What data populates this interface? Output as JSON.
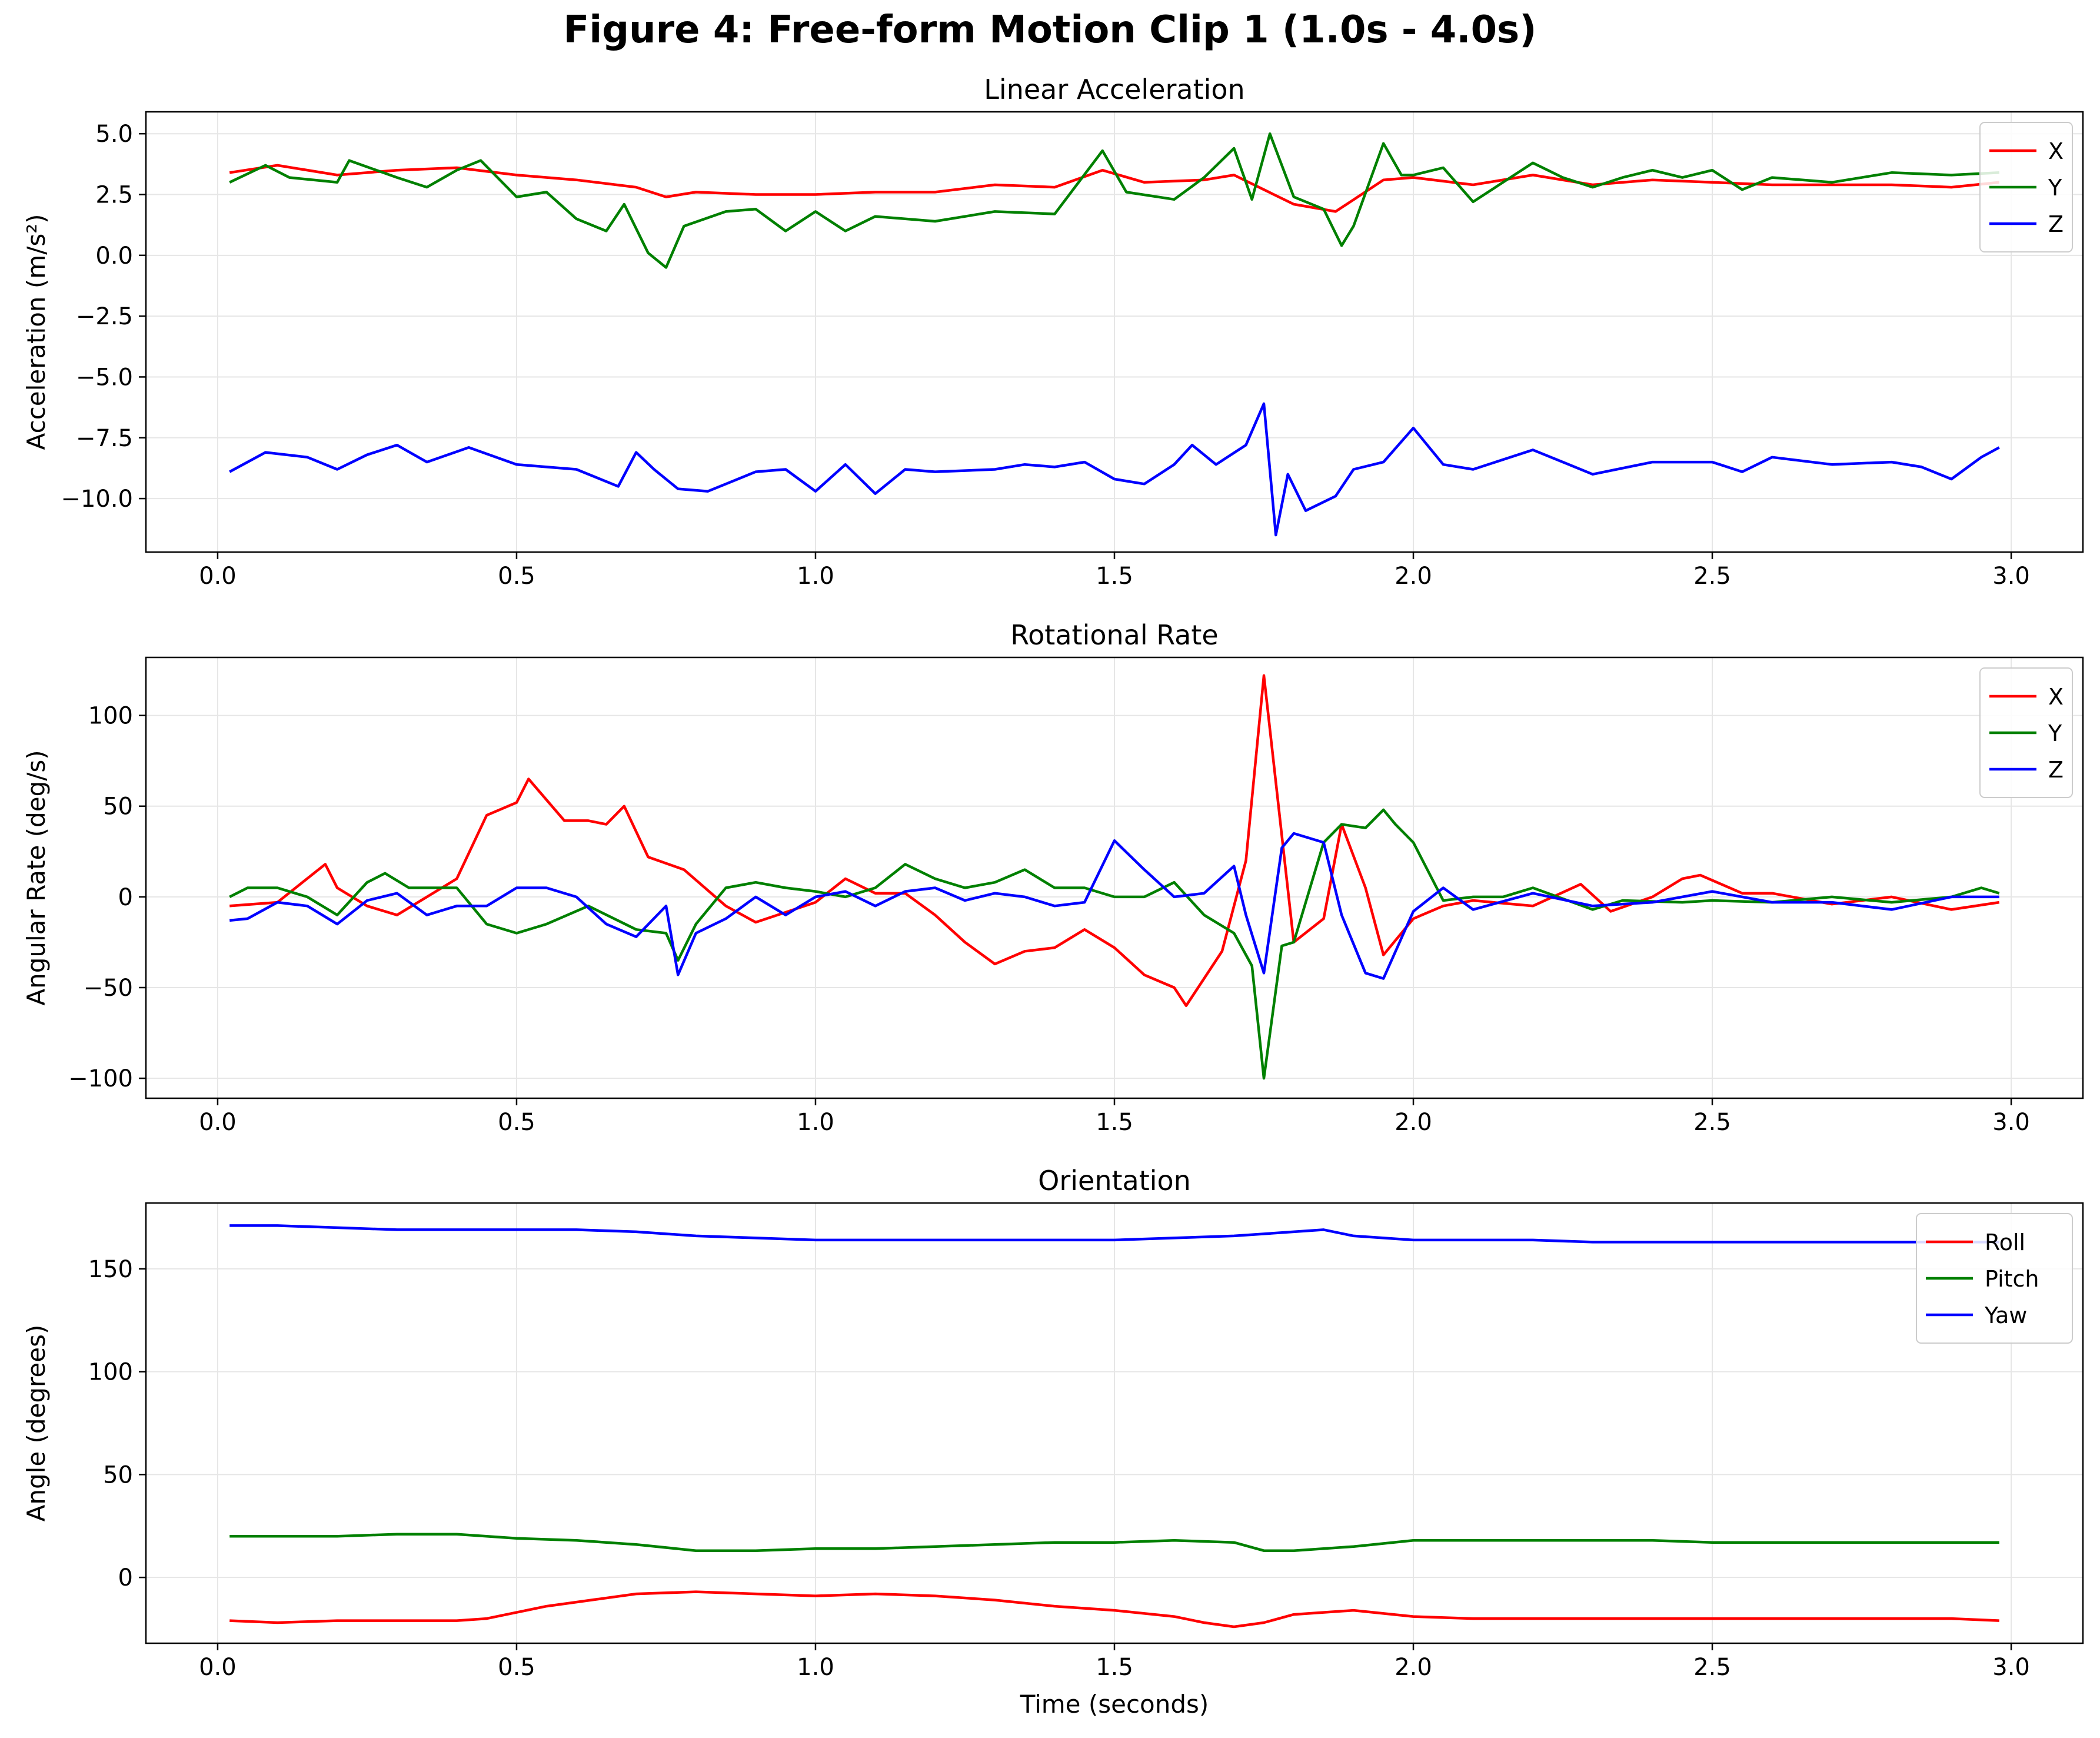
{
  "figure_title": "Figure 4: Free-form Motion Clip 1 (1.0s - 4.0s)",
  "chart_data": [
    {
      "type": "line",
      "title": "Linear Acceleration",
      "xlabel": "",
      "ylabel": "Acceleration (m/s²)",
      "xlim": [
        -0.12,
        3.12
      ],
      "ylim": [
        -12.2,
        5.9
      ],
      "xticks": [
        0.0,
        0.5,
        1.0,
        1.5,
        2.0,
        2.5,
        3.0
      ],
      "xtick_labels": [
        "0.0",
        "0.5",
        "1.0",
        "1.5",
        "2.0",
        "2.5",
        "3.0"
      ],
      "yticks": [
        -10,
        -7.5,
        -5,
        -2.5,
        0,
        2.5,
        5
      ],
      "ytick_labels": [
        "−10.0",
        "−7.5",
        "−5.0",
        "−2.5",
        "0.0",
        "2.5",
        "5.0"
      ],
      "grid": true,
      "legend": "top-right",
      "series": [
        {
          "name": "X",
          "color": "#ff0000",
          "x": [
            0.02,
            0.1,
            0.2,
            0.3,
            0.4,
            0.5,
            0.6,
            0.7,
            0.75,
            0.8,
            0.9,
            1.0,
            1.1,
            1.2,
            1.3,
            1.4,
            1.48,
            1.55,
            1.65,
            1.7,
            1.75,
            1.8,
            1.87,
            1.95,
            2.0,
            2.1,
            2.2,
            2.3,
            2.4,
            2.5,
            2.6,
            2.7,
            2.8,
            2.9,
            2.98
          ],
          "y": [
            3.4,
            3.7,
            3.3,
            3.5,
            3.6,
            3.3,
            3.1,
            2.8,
            2.4,
            2.6,
            2.5,
            2.5,
            2.6,
            2.6,
            2.9,
            2.8,
            3.5,
            3.0,
            3.1,
            3.3,
            2.7,
            2.1,
            1.8,
            3.1,
            3.2,
            2.9,
            3.3,
            2.9,
            3.1,
            3.0,
            2.9,
            2.9,
            2.9,
            2.8,
            3.0
          ]
        },
        {
          "name": "Y",
          "color": "#008000",
          "x": [
            0.02,
            0.08,
            0.12,
            0.2,
            0.22,
            0.3,
            0.35,
            0.4,
            0.44,
            0.5,
            0.55,
            0.6,
            0.65,
            0.68,
            0.72,
            0.75,
            0.78,
            0.85,
            0.9,
            0.95,
            1.0,
            1.05,
            1.1,
            1.2,
            1.3,
            1.4,
            1.48,
            1.52,
            1.6,
            1.65,
            1.7,
            1.73,
            1.76,
            1.8,
            1.85,
            1.88,
            1.9,
            1.95,
            1.98,
            2.0,
            2.05,
            2.1,
            2.15,
            2.2,
            2.25,
            2.3,
            2.35,
            2.4,
            2.45,
            2.5,
            2.55,
            2.6,
            2.7,
            2.8,
            2.9,
            2.98
          ],
          "y": [
            3.0,
            3.7,
            3.2,
            3.0,
            3.9,
            3.2,
            2.8,
            3.5,
            3.9,
            2.4,
            2.6,
            1.5,
            1.0,
            2.1,
            0.1,
            -0.5,
            1.2,
            1.8,
            1.9,
            1.0,
            1.8,
            1.0,
            1.6,
            1.4,
            1.8,
            1.7,
            4.3,
            2.6,
            2.3,
            3.2,
            4.4,
            2.3,
            5.0,
            2.4,
            1.9,
            0.4,
            1.2,
            4.6,
            3.3,
            3.3,
            3.6,
            2.2,
            3.0,
            3.8,
            3.2,
            2.8,
            3.2,
            3.5,
            3.2,
            3.5,
            2.7,
            3.2,
            3.0,
            3.4,
            3.3,
            3.4
          ]
        },
        {
          "name": "Z",
          "color": "#0000ff",
          "x": [
            0.02,
            0.08,
            0.15,
            0.2,
            0.25,
            0.3,
            0.35,
            0.42,
            0.5,
            0.6,
            0.67,
            0.7,
            0.73,
            0.77,
            0.82,
            0.85,
            0.9,
            0.95,
            1.0,
            1.05,
            1.1,
            1.15,
            1.2,
            1.3,
            1.35,
            1.4,
            1.45,
            1.5,
            1.55,
            1.6,
            1.63,
            1.67,
            1.72,
            1.75,
            1.77,
            1.79,
            1.82,
            1.87,
            1.9,
            1.95,
            2.0,
            2.05,
            2.1,
            2.2,
            2.3,
            2.4,
            2.5,
            2.55,
            2.6,
            2.7,
            2.8,
            2.85,
            2.9,
            2.95,
            2.98
          ],
          "y": [
            -8.9,
            -8.1,
            -8.3,
            -8.8,
            -8.2,
            -7.8,
            -8.5,
            -7.9,
            -8.6,
            -8.8,
            -9.5,
            -8.1,
            -8.8,
            -9.6,
            -9.7,
            -9.4,
            -8.9,
            -8.8,
            -9.7,
            -8.6,
            -9.8,
            -8.8,
            -8.9,
            -8.8,
            -8.6,
            -8.7,
            -8.5,
            -9.2,
            -9.4,
            -8.6,
            -7.8,
            -8.6,
            -7.8,
            -6.1,
            -11.5,
            -9.0,
            -10.5,
            -9.9,
            -8.8,
            -8.5,
            -7.1,
            -8.6,
            -8.8,
            -8.0,
            -9.0,
            -8.5,
            -8.5,
            -8.9,
            -8.3,
            -8.6,
            -8.5,
            -8.7,
            -9.2,
            -8.3,
            -7.9
          ]
        }
      ]
    },
    {
      "type": "line",
      "title": "Rotational Rate",
      "xlabel": "",
      "ylabel": "Angular Rate (deg/s)",
      "xlim": [
        -0.12,
        3.12
      ],
      "ylim": [
        -111,
        132
      ],
      "xticks": [
        0.0,
        0.5,
        1.0,
        1.5,
        2.0,
        2.5,
        3.0
      ],
      "xtick_labels": [
        "0.0",
        "0.5",
        "1.0",
        "1.5",
        "2.0",
        "2.5",
        "3.0"
      ],
      "yticks": [
        -100,
        -50,
        0,
        50,
        100
      ],
      "ytick_labels": [
        "−100",
        "−50",
        "0",
        "50",
        "100"
      ],
      "grid": true,
      "legend": "top-right",
      "series": [
        {
          "name": "X",
          "color": "#ff0000",
          "x": [
            0.02,
            0.1,
            0.18,
            0.2,
            0.25,
            0.3,
            0.35,
            0.4,
            0.45,
            0.5,
            0.52,
            0.58,
            0.62,
            0.65,
            0.68,
            0.72,
            0.78,
            0.85,
            0.9,
            1.0,
            1.05,
            1.1,
            1.15,
            1.2,
            1.25,
            1.3,
            1.35,
            1.4,
            1.45,
            1.5,
            1.55,
            1.6,
            1.62,
            1.68,
            1.72,
            1.75,
            1.8,
            1.85,
            1.88,
            1.92,
            1.95,
            2.0,
            2.05,
            2.1,
            2.2,
            2.28,
            2.33,
            2.4,
            2.45,
            2.48,
            2.55,
            2.6,
            2.7,
            2.8,
            2.9,
            2.98
          ],
          "y": [
            -5,
            -3,
            18,
            5,
            -5,
            -10,
            0,
            10,
            45,
            52,
            65,
            42,
            42,
            40,
            50,
            22,
            15,
            -5,
            -14,
            -3,
            10,
            2,
            2,
            -10,
            -25,
            -37,
            -30,
            -28,
            -18,
            -28,
            -43,
            -50,
            -60,
            -30,
            20,
            122,
            -25,
            -12,
            40,
            5,
            -32,
            -12,
            -5,
            -2,
            -5,
            7,
            -8,
            0,
            10,
            12,
            2,
            2,
            -4,
            0,
            -7,
            -3
          ]
        },
        {
          "name": "Y",
          "color": "#008000",
          "x": [
            0.02,
            0.05,
            0.1,
            0.15,
            0.2,
            0.25,
            0.28,
            0.32,
            0.37,
            0.4,
            0.45,
            0.5,
            0.55,
            0.62,
            0.7,
            0.75,
            0.77,
            0.8,
            0.85,
            0.9,
            0.95,
            1.0,
            1.05,
            1.1,
            1.15,
            1.2,
            1.25,
            1.3,
            1.35,
            1.4,
            1.45,
            1.5,
            1.55,
            1.6,
            1.65,
            1.7,
            1.73,
            1.75,
            1.78,
            1.8,
            1.85,
            1.88,
            1.92,
            1.95,
            1.97,
            2.0,
            2.05,
            2.1,
            2.15,
            2.2,
            2.3,
            2.35,
            2.45,
            2.5,
            2.6,
            2.7,
            2.8,
            2.9,
            2.95,
            2.98
          ],
          "y": [
            0,
            5,
            5,
            0,
            -10,
            8,
            13,
            5,
            5,
            5,
            -15,
            -20,
            -15,
            -5,
            -18,
            -20,
            -35,
            -15,
            5,
            8,
            5,
            3,
            0,
            5,
            18,
            10,
            5,
            8,
            15,
            5,
            5,
            0,
            0,
            8,
            -10,
            -20,
            -38,
            -100,
            -27,
            -25,
            30,
            40,
            38,
            48,
            40,
            30,
            -2,
            0,
            0,
            5,
            -7,
            -2,
            -3,
            -2,
            -3,
            0,
            -3,
            0,
            5,
            2
          ]
        },
        {
          "name": "Z",
          "color": "#0000ff",
          "x": [
            0.02,
            0.05,
            0.1,
            0.15,
            0.2,
            0.25,
            0.3,
            0.35,
            0.4,
            0.45,
            0.5,
            0.55,
            0.6,
            0.65,
            0.7,
            0.75,
            0.77,
            0.8,
            0.85,
            0.9,
            0.95,
            1.0,
            1.05,
            1.1,
            1.15,
            1.2,
            1.25,
            1.3,
            1.35,
            1.4,
            1.45,
            1.5,
            1.55,
            1.6,
            1.65,
            1.7,
            1.72,
            1.75,
            1.78,
            1.8,
            1.85,
            1.88,
            1.92,
            1.95,
            2.0,
            2.05,
            2.1,
            2.2,
            2.3,
            2.4,
            2.5,
            2.6,
            2.7,
            2.8,
            2.9,
            2.98
          ],
          "y": [
            -13,
            -12,
            -3,
            -5,
            -15,
            -2,
            2,
            -10,
            -5,
            -5,
            5,
            5,
            0,
            -15,
            -22,
            -5,
            -43,
            -20,
            -12,
            0,
            -10,
            0,
            3,
            -5,
            3,
            5,
            -2,
            2,
            0,
            -5,
            -3,
            31,
            15,
            0,
            2,
            17,
            -10,
            -42,
            27,
            35,
            30,
            -10,
            -42,
            -45,
            -8,
            5,
            -7,
            2,
            -5,
            -3,
            3,
            -3,
            -3,
            -7,
            0,
            0
          ]
        }
      ]
    },
    {
      "type": "line",
      "title": "Orientation",
      "xlabel": "Time (seconds)",
      "ylabel": "Angle (degrees)",
      "xlim": [
        -0.12,
        3.12
      ],
      "ylim": [
        -32,
        182
      ],
      "xticks": [
        0.0,
        0.5,
        1.0,
        1.5,
        2.0,
        2.5,
        3.0
      ],
      "xtick_labels": [
        "0.0",
        "0.5",
        "1.0",
        "1.5",
        "2.0",
        "2.5",
        "3.0"
      ],
      "yticks": [
        0,
        50,
        100,
        150
      ],
      "ytick_labels": [
        "0",
        "50",
        "100",
        "150"
      ],
      "grid": true,
      "legend": "top-right",
      "series": [
        {
          "name": "Roll",
          "color": "#ff0000",
          "x": [
            0.02,
            0.1,
            0.2,
            0.3,
            0.4,
            0.45,
            0.5,
            0.55,
            0.6,
            0.7,
            0.8,
            0.9,
            1.0,
            1.1,
            1.2,
            1.3,
            1.4,
            1.5,
            1.6,
            1.65,
            1.7,
            1.75,
            1.8,
            1.9,
            2.0,
            2.1,
            2.2,
            2.3,
            2.4,
            2.5,
            2.6,
            2.7,
            2.8,
            2.9,
            2.98
          ],
          "y": [
            -21,
            -22,
            -21,
            -21,
            -21,
            -20,
            -17,
            -14,
            -12,
            -8,
            -7,
            -8,
            -9,
            -8,
            -9,
            -11,
            -14,
            -16,
            -19,
            -22,
            -24,
            -22,
            -18,
            -16,
            -19,
            -20,
            -20,
            -20,
            -20,
            -20,
            -20,
            -20,
            -20,
            -20,
            -21
          ]
        },
        {
          "name": "Pitch",
          "color": "#008000",
          "x": [
            0.02,
            0.1,
            0.2,
            0.3,
            0.4,
            0.5,
            0.6,
            0.7,
            0.8,
            0.9,
            1.0,
            1.1,
            1.2,
            1.3,
            1.4,
            1.5,
            1.6,
            1.7,
            1.75,
            1.8,
            1.9,
            2.0,
            2.1,
            2.2,
            2.3,
            2.4,
            2.5,
            2.6,
            2.7,
            2.8,
            2.9,
            2.98
          ],
          "y": [
            20,
            20,
            20,
            21,
            21,
            19,
            18,
            16,
            13,
            13,
            14,
            14,
            15,
            16,
            17,
            17,
            18,
            17,
            13,
            13,
            15,
            18,
            18,
            18,
            18,
            18,
            17,
            17,
            17,
            17,
            17,
            17
          ]
        },
        {
          "name": "Yaw",
          "color": "#0000ff",
          "x": [
            0.02,
            0.1,
            0.2,
            0.3,
            0.4,
            0.5,
            0.6,
            0.7,
            0.8,
            0.9,
            1.0,
            1.1,
            1.2,
            1.3,
            1.4,
            1.5,
            1.6,
            1.7,
            1.8,
            1.85,
            1.9,
            2.0,
            2.1,
            2.2,
            2.3,
            2.4,
            2.5,
            2.6,
            2.7,
            2.8,
            2.9,
            2.98
          ],
          "y": [
            171,
            171,
            170,
            169,
            169,
            169,
            169,
            168,
            166,
            165,
            164,
            164,
            164,
            164,
            164,
            164,
            165,
            166,
            168,
            169,
            166,
            164,
            164,
            164,
            163,
            163,
            163,
            163,
            163,
            163,
            163,
            163
          ]
        }
      ]
    }
  ]
}
